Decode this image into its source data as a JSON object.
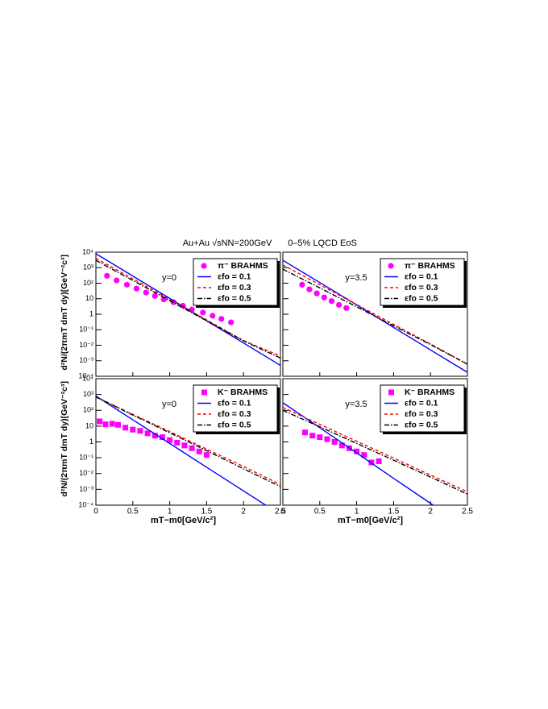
{
  "chart_data": [
    {
      "type": "line",
      "title": "Au+Au √sNN=200GeV",
      "y_label": "d²N/(2πmT dmT dy)[GeV⁻²c³]",
      "annotation": "y=0",
      "log_y": true,
      "xlim": [
        0,
        2.5
      ],
      "xticks": [
        0,
        0.5,
        1,
        1.5,
        2,
        2.5
      ],
      "ylim": [
        0.0001,
        10000
      ],
      "yticks": [
        {
          "value": 10000,
          "label": "10⁴"
        },
        {
          "value": 1000,
          "label": "10³"
        },
        {
          "value": 100,
          "label": "10²"
        },
        10,
        1,
        {
          "value": 0.1,
          "label": "10⁻¹"
        },
        {
          "value": 0.01,
          "label": "10⁻²"
        },
        {
          "value": 0.001,
          "label": "10⁻³"
        },
        {
          "value": 0.0001,
          "label": "10⁻⁴"
        }
      ],
      "series": [
        {
          "name": "π⁻ BRAHMS",
          "color": "#ff00ff",
          "marker": "circle",
          "x": [
            0.15,
            0.28,
            0.42,
            0.55,
            0.68,
            0.8,
            0.92,
            1.05,
            1.18,
            1.3,
            1.45,
            1.58,
            1.7,
            1.83
          ],
          "values": [
            300,
            150,
            80,
            45,
            25,
            15,
            9,
            6,
            3.5,
            2,
            1.3,
            0.8,
            0.5,
            0.3
          ]
        },
        {
          "name": "εfo = 0.1",
          "color": "#0000ff",
          "dash": "solid",
          "x": [
            0,
            0.5,
            1,
            1.5,
            2,
            2.5
          ],
          "values": [
            8000,
            290,
            10.5,
            0.38,
            0.014,
            0.0005
          ]
        },
        {
          "name": "εfo = 0.3",
          "color": "#ff0000",
          "dash": "dashed",
          "x": [
            0,
            0.5,
            1,
            1.5,
            2,
            2.5
          ],
          "values": [
            4000,
            190,
            9,
            0.43,
            0.02,
            0.002
          ]
        },
        {
          "name": "εfo = 0.5",
          "color": "#000000",
          "dash": "dashdot",
          "x": [
            0,
            0.5,
            1,
            1.5,
            2,
            2.5
          ],
          "values": [
            3000,
            150,
            7.5,
            0.38,
            0.019,
            0.0015
          ]
        }
      ]
    },
    {
      "type": "line",
      "title": "0–5% LQCD EoS",
      "annotation": "y=3.5",
      "log_y": true,
      "xlim": [
        0,
        2.5
      ],
      "xticks": [
        0,
        0.5,
        1,
        1.5,
        2,
        2.5
      ],
      "ylim": [
        0.0001,
        10000
      ],
      "yticks": [
        10000,
        1000,
        100,
        10,
        1,
        0.1,
        0.01,
        0.001,
        0.0001
      ],
      "series": [
        {
          "name": "π⁻ BRAHMS",
          "color": "#ff00ff",
          "marker": "circle",
          "x": [
            0.26,
            0.36,
            0.46,
            0.56,
            0.66,
            0.76,
            0.86
          ],
          "values": [
            80,
            40,
            22,
            12,
            7,
            4,
            2.5
          ]
        },
        {
          "name": "εfo = 0.1",
          "color": "#0000ff",
          "dash": "solid",
          "x": [
            0,
            0.5,
            1,
            1.5,
            2,
            2.5
          ],
          "values": [
            3000,
            110,
            4,
            0.14,
            0.005,
            0.00018
          ]
        },
        {
          "name": "εfo = 0.3",
          "color": "#ff0000",
          "dash": "dashed",
          "x": [
            0,
            0.5,
            1,
            1.5,
            2,
            2.5
          ],
          "values": [
            1500,
            80,
            4.2,
            0.22,
            0.012,
            0.0006
          ]
        },
        {
          "name": "εfo = 0.5",
          "color": "#000000",
          "dash": "dashdot",
          "x": [
            0,
            0.5,
            1,
            1.5,
            2,
            2.5
          ],
          "values": [
            800,
            50,
            3,
            0.18,
            0.011,
            0.0006
          ]
        }
      ]
    },
    {
      "type": "line",
      "y_label": "d²N/(2πmT dmT dy)[GeV⁻²c³]",
      "x_label": "mT−m0[GeV/c²]",
      "annotation": "y=0",
      "log_y": true,
      "xlim": [
        0,
        2.5
      ],
      "xticks": [
        0,
        0.5,
        1,
        1.5,
        2,
        2.5
      ],
      "ylim": [
        0.0001,
        10000
      ],
      "yticks": [
        {
          "value": 10000,
          "label": "10⁴"
        },
        {
          "value": 1000,
          "label": "10³"
        },
        {
          "value": 100,
          "label": "10²"
        },
        10,
        1,
        {
          "value": 0.1,
          "label": "10⁻¹"
        },
        {
          "value": 0.01,
          "label": "10⁻²"
        },
        {
          "value": 0.001,
          "label": "10⁻³"
        },
        {
          "value": 0.0001,
          "label": "10⁻⁴"
        }
      ],
      "series": [
        {
          "name": "K⁻ BRAHMS",
          "color": "#ff00ff",
          "marker": "square",
          "x": [
            0.05,
            0.13,
            0.22,
            0.3,
            0.4,
            0.5,
            0.6,
            0.7,
            0.8,
            0.9,
            1.0,
            1.1,
            1.2,
            1.3,
            1.4,
            1.5
          ],
          "values": [
            20,
            13,
            14,
            12,
            8,
            6,
            5,
            3.5,
            2.5,
            2,
            1.3,
            0.9,
            0.6,
            0.4,
            0.25,
            0.15
          ]
        },
        {
          "name": "εfo = 0.1",
          "color": "#0000ff",
          "dash": "solid",
          "x": [
            0,
            0.5,
            1,
            1.5,
            2,
            2.5
          ],
          "values": [
            800,
            25,
            0.8,
            0.025,
            0.0008,
            2.5e-05
          ]
        },
        {
          "name": "εfo = 0.3",
          "color": "#ff0000",
          "dash": "dashed",
          "x": [
            0,
            0.5,
            1,
            1.5,
            2,
            2.5
          ],
          "values": [
            700,
            55,
            4.5,
            0.35,
            0.028,
            0.002
          ]
        },
        {
          "name": "εfo = 0.5",
          "color": "#000000",
          "dash": "dashdot",
          "x": [
            0,
            0.5,
            1,
            1.5,
            2,
            2.5
          ],
          "values": [
            700,
            50,
            3.8,
            0.28,
            0.02,
            0.0015
          ]
        }
      ]
    },
    {
      "type": "line",
      "x_label": "mT−m0[GeV/c²]",
      "annotation": "y=3.5",
      "log_y": true,
      "xlim": [
        0,
        2.5
      ],
      "xticks": [
        0,
        0.5,
        1,
        1.5,
        2,
        2.5
      ],
      "ylim": [
        0.0001,
        10000
      ],
      "yticks": [
        10000,
        1000,
        100,
        10,
        1,
        0.1,
        0.01,
        0.001,
        0.0001
      ],
      "series": [
        {
          "name": "K⁻ BRAHMS",
          "color": "#ff00ff",
          "marker": "square",
          "x": [
            0.3,
            0.4,
            0.5,
            0.6,
            0.7,
            0.8,
            0.9,
            1.0,
            1.1,
            1.2,
            1.3
          ],
          "values": [
            4,
            2.5,
            2,
            1.5,
            1,
            0.6,
            0.4,
            0.25,
            0.15,
            0.05,
            0.06
          ]
        },
        {
          "name": "εfo = 0.1",
          "color": "#0000ff",
          "dash": "solid",
          "x": [
            0,
            0.5,
            1,
            1.5,
            2,
            2.5
          ],
          "values": [
            300,
            8,
            0.2,
            0.005,
            0.00013,
            3.5e-06
          ]
        },
        {
          "name": "εfo = 0.3",
          "color": "#ff0000",
          "dash": "dashed",
          "x": [
            0,
            0.5,
            1,
            1.5,
            2,
            2.5
          ],
          "values": [
            150,
            13,
            1.1,
            0.095,
            0.008,
            0.0007
          ]
        },
        {
          "name": "εfo = 0.5",
          "color": "#000000",
          "dash": "dashdot",
          "x": [
            0,
            0.5,
            1,
            1.5,
            2,
            2.5
          ],
          "values": [
            100,
            9,
            0.8,
            0.07,
            0.006,
            0.0005
          ]
        }
      ]
    }
  ]
}
